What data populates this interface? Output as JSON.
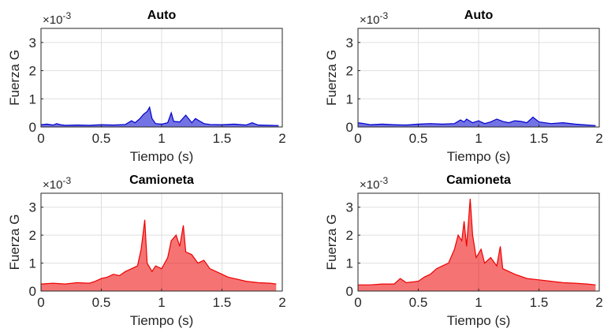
{
  "exponent_prefix": "×10",
  "exponent_power": "-3",
  "chart_data": [
    {
      "type": "line",
      "title": "Auto",
      "xlabel": "Tiempo (s)",
      "ylabel": "Fuerza G",
      "xlim": [
        0,
        2
      ],
      "ylim": [
        0,
        3.5
      ],
      "y_scale_exponent": -3,
      "xticks": [
        0,
        0.5,
        1,
        1.5,
        2
      ],
      "xtick_labels": [
        "0",
        "0.5",
        "1",
        "1.5",
        "2"
      ],
      "yticks": [
        0,
        1,
        2,
        3
      ],
      "ytick_labels": [
        "0",
        "1",
        "2",
        "3"
      ],
      "grid": true,
      "color": "#0000cc",
      "series": [
        {
          "x": [
            0,
            0.05,
            0.1,
            0.13,
            0.16,
            0.2,
            0.3,
            0.4,
            0.5,
            0.6,
            0.7,
            0.75,
            0.78,
            0.82,
            0.85,
            0.88,
            0.9,
            0.92,
            0.95,
            1.0,
            1.05,
            1.08,
            1.1,
            1.15,
            1.2,
            1.25,
            1.28,
            1.3,
            1.35,
            1.4,
            1.5,
            1.6,
            1.7,
            1.75,
            1.8,
            1.9,
            1.97
          ],
          "y": [
            0.08,
            0.1,
            0.07,
            0.12,
            0.08,
            0.06,
            0.07,
            0.06,
            0.08,
            0.07,
            0.09,
            0.22,
            0.15,
            0.3,
            0.45,
            0.55,
            0.7,
            0.3,
            0.12,
            0.1,
            0.15,
            0.5,
            0.2,
            0.18,
            0.42,
            0.15,
            0.3,
            0.25,
            0.12,
            0.09,
            0.08,
            0.1,
            0.07,
            0.15,
            0.07,
            0.06,
            0.05
          ]
        }
      ]
    },
    {
      "type": "line",
      "title": "Auto",
      "xlabel": "Tiempo (s)",
      "ylabel": "Fuerza G",
      "xlim": [
        0,
        2
      ],
      "ylim": [
        0,
        3.5
      ],
      "y_scale_exponent": -3,
      "xticks": [
        0,
        0.5,
        1,
        1.5,
        2
      ],
      "xtick_labels": [
        "0",
        "0.5",
        "1",
        "1.5",
        "2"
      ],
      "yticks": [
        0,
        1,
        2,
        3
      ],
      "ytick_labels": [
        "0",
        "1",
        "2",
        "3"
      ],
      "grid": true,
      "color": "#0000cc",
      "series": [
        {
          "x": [
            0,
            0.05,
            0.1,
            0.2,
            0.3,
            0.4,
            0.5,
            0.6,
            0.7,
            0.8,
            0.85,
            0.88,
            0.9,
            0.95,
            1.0,
            1.05,
            1.1,
            1.15,
            1.2,
            1.25,
            1.3,
            1.35,
            1.4,
            1.45,
            1.5,
            1.6,
            1.7,
            1.8,
            1.9,
            1.97
          ],
          "y": [
            0.15,
            0.12,
            0.08,
            0.1,
            0.08,
            0.07,
            0.1,
            0.12,
            0.1,
            0.12,
            0.25,
            0.18,
            0.28,
            0.15,
            0.22,
            0.12,
            0.18,
            0.28,
            0.2,
            0.15,
            0.22,
            0.2,
            0.15,
            0.35,
            0.18,
            0.12,
            0.15,
            0.1,
            0.07,
            0.05
          ]
        }
      ]
    },
    {
      "type": "line",
      "title": "Camioneta",
      "xlabel": "Tiempo (s)",
      "ylabel": "Fuerza G",
      "xlim": [
        0,
        2
      ],
      "ylim": [
        0,
        3.5
      ],
      "y_scale_exponent": -3,
      "xticks": [
        0,
        0.5,
        1,
        1.5,
        2
      ],
      "xtick_labels": [
        "0",
        "0.5",
        "1",
        "1.5",
        "2"
      ],
      "yticks": [
        0,
        1,
        2,
        3
      ],
      "ytick_labels": [
        "0",
        "1",
        "2",
        "3"
      ],
      "grid": true,
      "color": "#ee0000",
      "series": [
        {
          "x": [
            0,
            0.1,
            0.2,
            0.3,
            0.4,
            0.45,
            0.5,
            0.55,
            0.6,
            0.65,
            0.7,
            0.75,
            0.8,
            0.83,
            0.86,
            0.88,
            0.92,
            0.95,
            1.0,
            1.05,
            1.08,
            1.12,
            1.15,
            1.18,
            1.2,
            1.25,
            1.3,
            1.35,
            1.4,
            1.45,
            1.5,
            1.55,
            1.6,
            1.7,
            1.8,
            1.9,
            1.95
          ],
          "y": [
            0.25,
            0.28,
            0.25,
            0.3,
            0.28,
            0.35,
            0.45,
            0.5,
            0.6,
            0.55,
            0.7,
            0.8,
            0.9,
            1.5,
            2.55,
            1.0,
            0.7,
            0.9,
            0.8,
            1.2,
            1.8,
            2.0,
            1.6,
            2.35,
            1.4,
            1.3,
            1.0,
            1.1,
            0.8,
            0.7,
            0.6,
            0.5,
            0.45,
            0.35,
            0.3,
            0.28,
            0.25
          ]
        }
      ]
    },
    {
      "type": "line",
      "title": "Camioneta",
      "xlabel": "Tiempo (s)",
      "ylabel": "Fuerza G",
      "xlim": [
        0,
        2
      ],
      "ylim": [
        0,
        3.5
      ],
      "y_scale_exponent": -3,
      "xticks": [
        0,
        0.5,
        1,
        1.5,
        2
      ],
      "xtick_labels": [
        "0",
        "0.5",
        "1",
        "1.5",
        "2"
      ],
      "yticks": [
        0,
        1,
        2,
        3
      ],
      "ytick_labels": [
        "0",
        "1",
        "2",
        "3"
      ],
      "grid": true,
      "color": "#ee0000",
      "series": [
        {
          "x": [
            0,
            0.1,
            0.2,
            0.3,
            0.35,
            0.4,
            0.5,
            0.55,
            0.6,
            0.65,
            0.7,
            0.75,
            0.8,
            0.83,
            0.86,
            0.88,
            0.9,
            0.93,
            0.95,
            0.98,
            1.02,
            1.05,
            1.1,
            1.15,
            1.18,
            1.2,
            1.25,
            1.3,
            1.4,
            1.5,
            1.6,
            1.7,
            1.8,
            1.9,
            1.97
          ],
          "y": [
            0.22,
            0.22,
            0.25,
            0.25,
            0.45,
            0.3,
            0.35,
            0.5,
            0.6,
            0.8,
            0.9,
            1.0,
            1.5,
            2.0,
            1.8,
            2.5,
            1.6,
            3.3,
            2.0,
            1.2,
            1.5,
            1.0,
            1.2,
            0.9,
            1.6,
            0.8,
            0.7,
            0.6,
            0.45,
            0.4,
            0.35,
            0.3,
            0.28,
            0.25,
            0.22
          ]
        }
      ]
    }
  ]
}
